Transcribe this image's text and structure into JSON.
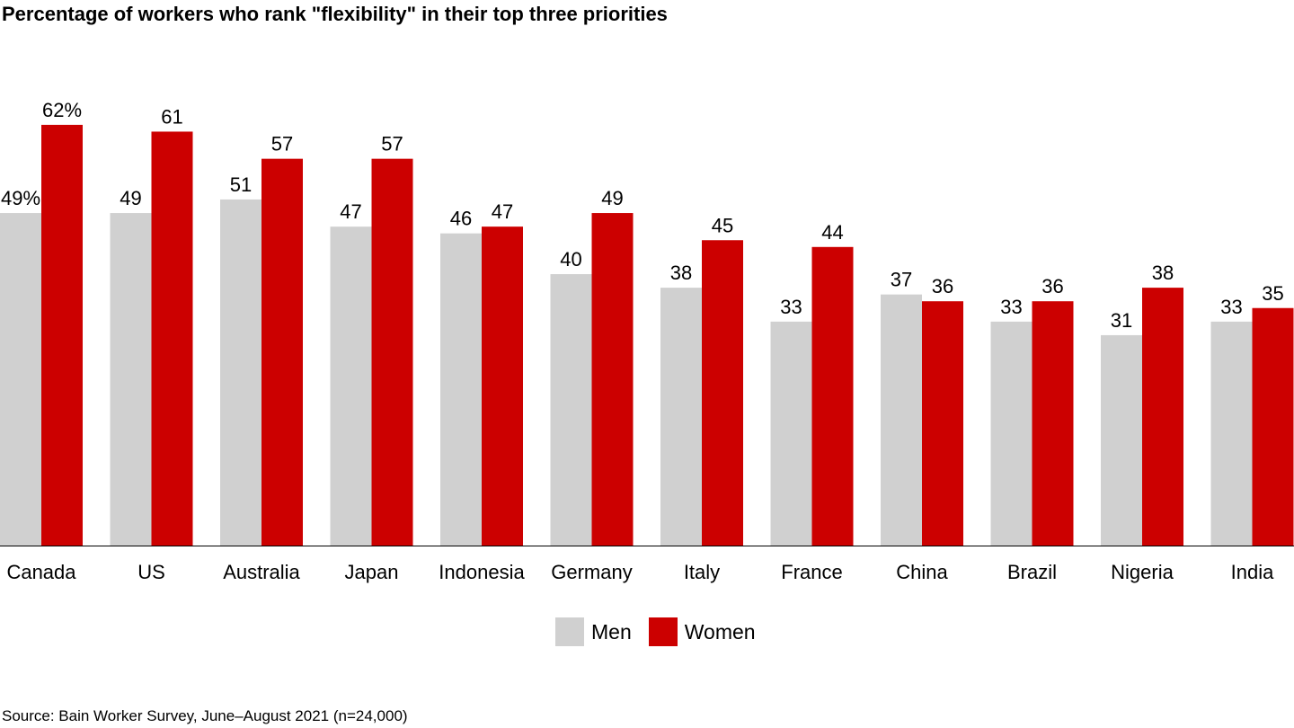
{
  "title": "Percentage of workers who rank \"flexibility\" in their top three priorities",
  "source": "Source: Bain Worker Survey, June–August 2021 (n=24,000)",
  "chart_data": {
    "type": "bar",
    "title": "Percentage of workers who rank \"flexibility\" in their top three priorities",
    "xlabel": "",
    "ylabel": "",
    "ylim": [
      0,
      62
    ],
    "grid": false,
    "legend_position": "bottom-center",
    "categories": [
      "Canada",
      "US",
      "Australia",
      "Japan",
      "Indonesia",
      "Germany",
      "Italy",
      "France",
      "China",
      "Brazil",
      "Nigeria",
      "India"
    ],
    "series": [
      {
        "name": "Men",
        "color": "#d0d0d0",
        "values": [
          49,
          49,
          51,
          47,
          46,
          40,
          38,
          33,
          37,
          33,
          31,
          33
        ],
        "labels": [
          "49%",
          "49",
          "51",
          "47",
          "46",
          "40",
          "38",
          "33",
          "37",
          "33",
          "31",
          "33"
        ]
      },
      {
        "name": "Women",
        "color": "#cc0000",
        "values": [
          62,
          61,
          57,
          57,
          47,
          49,
          45,
          44,
          36,
          36,
          38,
          35
        ],
        "labels": [
          "62%",
          "61",
          "57",
          "57",
          "47",
          "49",
          "45",
          "44",
          "36",
          "36",
          "38",
          "35"
        ]
      }
    ]
  }
}
